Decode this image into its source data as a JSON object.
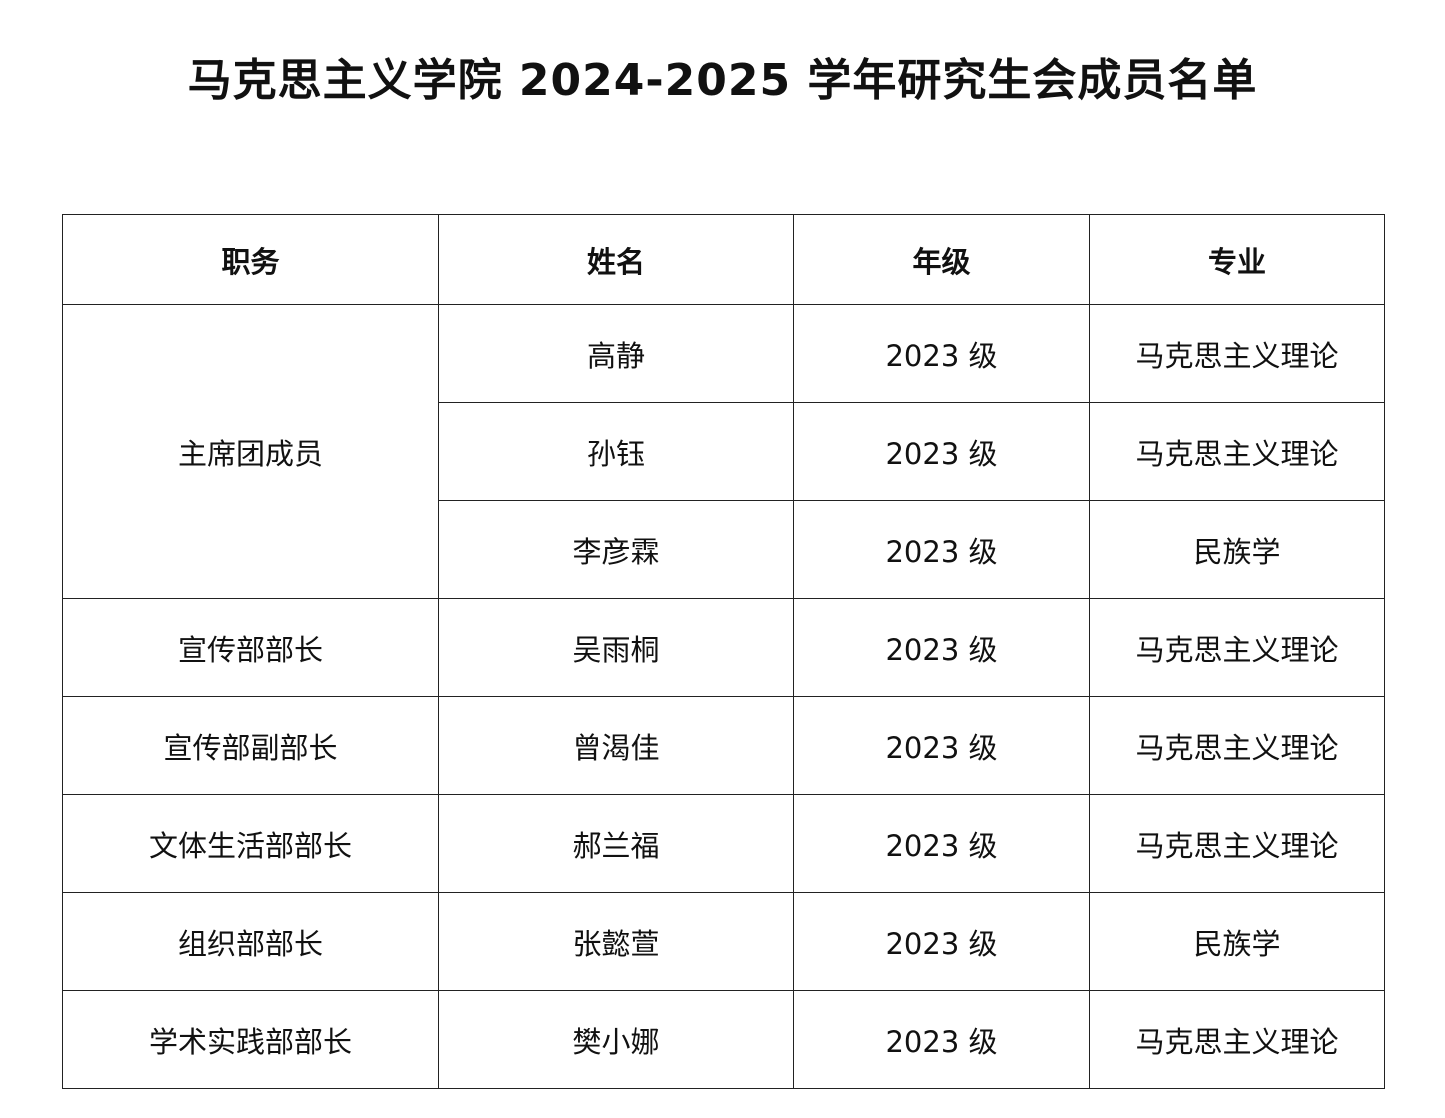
{
  "title": "马克思主义学院 2024-2025 学年研究生会成员名单",
  "headers": [
    "职务",
    "姓名",
    "年级",
    "专业"
  ],
  "groups": [
    {
      "position": "主席团成员",
      "members": [
        {
          "name": "高静",
          "grade": "2023 级",
          "major": "马克思主义理论"
        },
        {
          "name": "孙钰",
          "grade": "2023 级",
          "major": "马克思主义理论"
        },
        {
          "name": "李彦霖",
          "grade": "2023 级",
          "major": "民族学"
        }
      ]
    },
    {
      "position": "宣传部部长",
      "members": [
        {
          "name": "吴雨桐",
          "grade": "2023 级",
          "major": "马克思主义理论"
        }
      ]
    },
    {
      "position": "宣传部副部长",
      "members": [
        {
          "name": "曾渴佳",
          "grade": "2023 级",
          "major": "马克思主义理论"
        }
      ]
    },
    {
      "position": "文体生活部部长",
      "members": [
        {
          "name": "郝兰福",
          "grade": "2023 级",
          "major": "马克思主义理论"
        }
      ]
    },
    {
      "position": "组织部部长",
      "members": [
        {
          "name": "张懿萱",
          "grade": "2023 级",
          "major": "民族学"
        }
      ]
    },
    {
      "position": "学术实践部部长",
      "members": [
        {
          "name": "樊小娜",
          "grade": "2023 级",
          "major": "马克思主义理论"
        }
      ]
    }
  ]
}
